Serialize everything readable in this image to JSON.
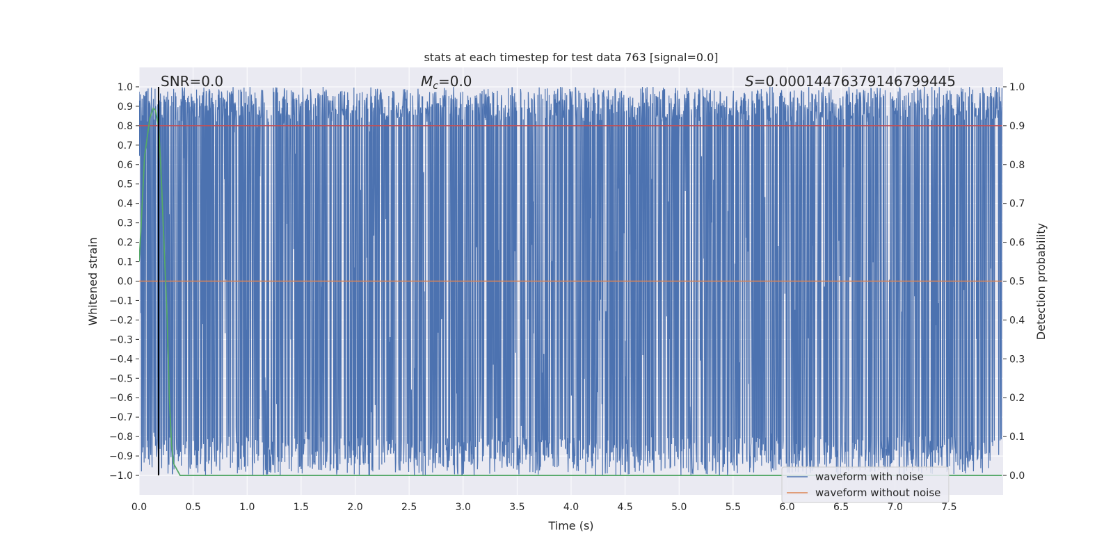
{
  "chart_data": {
    "type": "line",
    "title": "stats at each timestep for test data 763 [signal=0.0]",
    "xlabel": "Time (s)",
    "ylabel_left": "Whitened strain",
    "ylabel_right": "Detection probability",
    "xlim": [
      0.0,
      8.0
    ],
    "ylim_left": [
      -1.1,
      1.1
    ],
    "ylim_right": [
      -0.05,
      1.05
    ],
    "x_ticks": [
      "0.0",
      "0.5",
      "1.0",
      "1.5",
      "2.0",
      "2.5",
      "3.0",
      "3.5",
      "4.0",
      "4.5",
      "5.0",
      "5.5",
      "6.0",
      "6.5",
      "7.0",
      "7.5"
    ],
    "y_ticks_left": [
      "1.0",
      "0.9",
      "0.8",
      "0.7",
      "0.6",
      "0.5",
      "0.4",
      "0.3",
      "0.2",
      "0.1",
      "0.0",
      "−0.1",
      "−0.2",
      "−0.3",
      "−0.4",
      "−0.5",
      "−0.6",
      "−0.7",
      "−0.8",
      "−0.9",
      "−1.0"
    ],
    "y_ticks_right": [
      "1.0",
      "0.9",
      "0.8",
      "0.7",
      "0.6",
      "0.5",
      "0.4",
      "0.3",
      "0.2",
      "0.1",
      "0.0"
    ],
    "annotations": {
      "snr": "SNR=0.0",
      "mc_symbol": "M",
      "mc_sub": "c",
      "mc_value": "=0.0",
      "s_symbol": "S",
      "s_value": "=0.00014476379146799445"
    },
    "grid": true,
    "legend": {
      "placement": "lower-right",
      "entries": [
        {
          "label": "waveform with noise",
          "color": "#4c72b0"
        },
        {
          "label": "waveform without noise",
          "color": "#dd8452"
        }
      ]
    },
    "series": [
      {
        "name": "waveform with noise",
        "axis": "left",
        "color": "#4c72b0",
        "description": "dense whitened noise filling roughly -1.0 to 1.0 over 0-8 s"
      },
      {
        "name": "waveform without noise",
        "axis": "left",
        "color": "#dd8452",
        "x": [
          0.0,
          7.99
        ],
        "y": [
          0.0,
          0.0
        ]
      },
      {
        "axis": "right",
        "color": "#55a868",
        "x": [
          0.0,
          0.02,
          0.05,
          0.08,
          0.1,
          0.13,
          0.15,
          0.18,
          0.2,
          0.23,
          0.26,
          0.28,
          0.3,
          0.32,
          0.35,
          0.38,
          1.0,
          4.0,
          7.99
        ],
        "y": [
          0.55,
          0.65,
          0.82,
          0.88,
          0.92,
          0.945,
          0.94,
          0.9,
          0.8,
          0.6,
          0.4,
          0.2,
          0.08,
          0.03,
          0.015,
          0.0,
          0.0,
          0.0,
          0.0
        ]
      },
      {
        "axis": "right",
        "color": "#c44e52",
        "x": [
          0.0,
          7.99
        ],
        "y": [
          0.9,
          0.9
        ]
      }
    ],
    "vline": {
      "x": 0.18,
      "color": "#000000"
    }
  }
}
